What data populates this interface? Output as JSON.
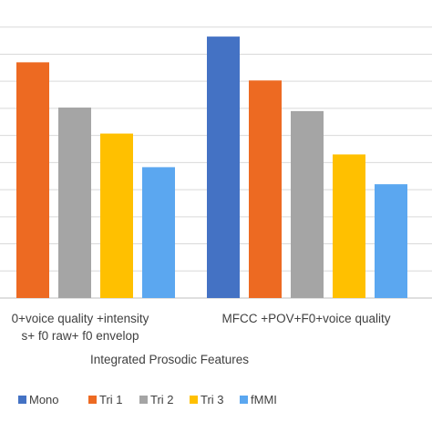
{
  "chart_data": {
    "type": "bar",
    "xlabel": "Integrated Prosodic Features",
    "ylabel": "",
    "categories": [
      [
        "0+voice quality +intensity",
        "s+ f0 raw+ f0 envelop"
      ],
      [
        "MFCC +POV+F0+voice quality"
      ]
    ],
    "series": [
      {
        "name": "Mono",
        "color": "#4472C4",
        "values": [
          null,
          96.5
        ]
      },
      {
        "name": "Tri 1",
        "color": "#ED6A22",
        "values": [
          87.0,
          80.3
        ]
      },
      {
        "name": "Tri 2",
        "color": "#A5A5A5",
        "values": [
          70.3,
          69.0
        ]
      },
      {
        "name": "Tri 3",
        "color": "#FFC000",
        "values": [
          60.7,
          53.0
        ]
      },
      {
        "name": "fMMI",
        "color": "#5BA7F0",
        "values": [
          48.3,
          42.0
        ]
      }
    ],
    "ylim": [
      0,
      110
    ],
    "gridlines": [
      10,
      20,
      30,
      40,
      50,
      60,
      70,
      80,
      90,
      100
    ],
    "grid": true,
    "legend_position": "bottom"
  }
}
